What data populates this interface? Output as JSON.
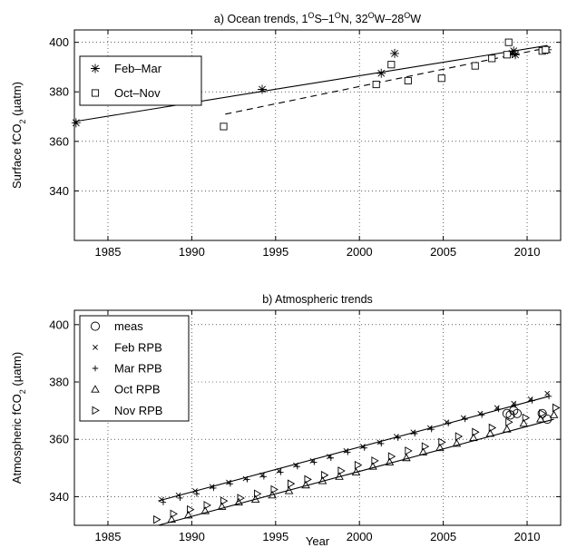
{
  "chart_data": [
    {
      "type": "scatter",
      "title": "a) Ocean trends, 1°S–1°N, 32°W–28°W",
      "title_parts": [
        "a) Ocean trends, 1",
        "O",
        "S–1",
        "O",
        "N, 32",
        "O",
        "W–28",
        "O",
        "W"
      ],
      "xlabel": "",
      "ylabel": "Surface fCO2 (µatm)",
      "ylabel_parts": [
        "Surface fCO",
        "2",
        " (µatm)"
      ],
      "xlim": [
        1983,
        2012
      ],
      "ylim": [
        320,
        405
      ],
      "xticks": [
        1985,
        1990,
        1995,
        2000,
        2005,
        2010
      ],
      "yticks": [
        340,
        360,
        380,
        400
      ],
      "grid": true,
      "legend_position": "top-left",
      "series": [
        {
          "name": "Feb–Mar",
          "marker": "asterisk",
          "points": [
            [
              1983.1,
              367.5
            ],
            [
              1994.2,
              381
            ],
            [
              2001.3,
              387.5
            ],
            [
              2002.1,
              395.5
            ],
            [
              2009.1,
              395.5
            ],
            [
              2009.2,
              396.5
            ],
            [
              2009.3,
              395
            ],
            [
              2011.2,
              397
            ]
          ]
        },
        {
          "name": "Oct–Nov",
          "marker": "square",
          "points": [
            [
              1991.9,
              366
            ],
            [
              2001,
              383
            ],
            [
              2001.9,
              391
            ],
            [
              2002.9,
              384.5
            ],
            [
              2004.9,
              385.5
            ],
            [
              2006.9,
              390.5
            ],
            [
              2007.9,
              393.5
            ],
            [
              2008.8,
              395
            ],
            [
              2008.9,
              400
            ],
            [
              2010.9,
              396.5
            ],
            [
              2011.1,
              397
            ]
          ]
        }
      ],
      "trend_lines": [
        {
          "series": "Feb–Mar",
          "style": "solid",
          "x": [
            1983,
            2011.2
          ],
          "y": [
            368,
            398.7
          ]
        },
        {
          "series": "Oct–Nov",
          "style": "dashed",
          "x": [
            1992,
            2011
          ],
          "y": [
            371,
            397.5
          ]
        }
      ]
    },
    {
      "type": "scatter",
      "title": "b) Atmospheric trends",
      "xlabel": "Year",
      "ylabel": "Atmospheric fCO2 (µatm)",
      "ylabel_parts": [
        "Atmospheric fCO",
        "2",
        " (µatm)"
      ],
      "xlim": [
        1983,
        2012
      ],
      "ylim": [
        330,
        405
      ],
      "xticks": [
        1985,
        1990,
        1995,
        2000,
        2005,
        2010
      ],
      "yticks": [
        340,
        360,
        380,
        400
      ],
      "grid": true,
      "legend_position": "top-left",
      "series": [
        {
          "name": "meas",
          "marker": "circle",
          "points": [
            [
              2008.8,
              369
            ],
            [
              2009,
              368.5
            ],
            [
              2009.2,
              370
            ],
            [
              2009.4,
              369
            ],
            [
              2010.9,
              369
            ],
            [
              2011.2,
              367
            ]
          ]
        },
        {
          "name": "Feb RPB",
          "marker": "x",
          "points": [
            [
              1988.2,
              339
            ],
            [
              1989.2,
              340.5
            ],
            [
              1990.2,
              342
            ],
            [
              1991.2,
              343.5
            ],
            [
              1992.2,
              345
            ],
            [
              1993.2,
              346.3
            ],
            [
              1994.2,
              347.5
            ],
            [
              1995.2,
              349
            ],
            [
              1996.2,
              351
            ],
            [
              1997.2,
              352.5
            ],
            [
              1998.2,
              354
            ],
            [
              1999.2,
              356
            ],
            [
              2000.2,
              357.5
            ],
            [
              2001.2,
              359
            ],
            [
              2002.2,
              361
            ],
            [
              2003.2,
              362.5
            ],
            [
              2004.2,
              364
            ],
            [
              2005.2,
              366
            ],
            [
              2006.2,
              367.5
            ],
            [
              2007.2,
              369
            ],
            [
              2008.2,
              371
            ],
            [
              2009.2,
              372.5
            ],
            [
              2010.2,
              374
            ],
            [
              2011.2,
              376
            ]
          ]
        },
        {
          "name": "Mar RPB",
          "marker": "plus",
          "points": [
            [
              1988.3,
              338
            ],
            [
              1989.3,
              339.5
            ],
            [
              1990.3,
              341
            ],
            [
              1991.3,
              343
            ],
            [
              1992.3,
              344.5
            ],
            [
              1993.3,
              346
            ],
            [
              1994.3,
              347
            ],
            [
              1995.3,
              348.5
            ],
            [
              1996.3,
              350.5
            ],
            [
              1997.3,
              352
            ],
            [
              1998.3,
              353.5
            ],
            [
              1999.3,
              355.5
            ],
            [
              2000.3,
              357
            ],
            [
              2001.3,
              358.5
            ],
            [
              2002.3,
              360.5
            ],
            [
              2003.3,
              362
            ],
            [
              2004.3,
              363.5
            ],
            [
              2005.3,
              365.5
            ],
            [
              2006.3,
              367
            ],
            [
              2007.3,
              368.5
            ],
            [
              2008.3,
              370.5
            ],
            [
              2009.3,
              372
            ],
            [
              2010.3,
              373.5
            ],
            [
              2011.3,
              375
            ]
          ]
        },
        {
          "name": "Oct RPB",
          "marker": "triangle-up",
          "points": [
            [
              1988.8,
              332
            ],
            [
              1989.8,
              333.5
            ],
            [
              1990.8,
              335
            ],
            [
              1991.8,
              336.5
            ],
            [
              1992.8,
              338
            ],
            [
              1993.8,
              339
            ],
            [
              1994.8,
              340.5
            ],
            [
              1995.8,
              342
            ],
            [
              1996.8,
              344
            ],
            [
              1997.8,
              345.5
            ],
            [
              1998.8,
              347
            ],
            [
              1999.8,
              348.5
            ],
            [
              2000.8,
              350.5
            ],
            [
              2001.8,
              352
            ],
            [
              2002.8,
              353.5
            ],
            [
              2003.8,
              355.5
            ],
            [
              2004.8,
              357
            ],
            [
              2005.8,
              358.5
            ],
            [
              2006.8,
              360.5
            ],
            [
              2007.8,
              362
            ],
            [
              2008.8,
              363.5
            ],
            [
              2009.8,
              365.5
            ],
            [
              2010.8,
              367
            ],
            [
              2011.6,
              368.5
            ]
          ]
        },
        {
          "name": "Nov RPB",
          "marker": "triangle-right",
          "points": [
            [
              1987.9,
              332
            ],
            [
              1988.9,
              334
            ],
            [
              1989.9,
              335.5
            ],
            [
              1990.9,
              337
            ],
            [
              1991.9,
              338.5
            ],
            [
              1992.9,
              339.5
            ],
            [
              1993.9,
              341
            ],
            [
              1994.9,
              342.5
            ],
            [
              1995.9,
              344.5
            ],
            [
              1996.9,
              346
            ],
            [
              1997.9,
              347.5
            ],
            [
              1998.9,
              349
            ],
            [
              1999.9,
              351
            ],
            [
              2000.9,
              352.5
            ],
            [
              2001.9,
              354
            ],
            [
              2002.9,
              356
            ],
            [
              2003.9,
              357.5
            ],
            [
              2004.9,
              359
            ],
            [
              2005.9,
              361
            ],
            [
              2006.9,
              362.5
            ],
            [
              2007.9,
              364
            ],
            [
              2008.9,
              366
            ],
            [
              2009.9,
              367.5
            ],
            [
              2010.9,
              369
            ],
            [
              2011.7,
              371
            ]
          ]
        }
      ],
      "trend_lines": [
        {
          "series": "Feb/Mar RPB",
          "style": "solid",
          "x": [
            1988,
            2011.3
          ],
          "y": [
            338.5,
            375
          ]
        },
        {
          "series": "Oct/Nov RPB",
          "style": "solid",
          "x": [
            1988,
            2011.6
          ],
          "y": [
            330,
            367
          ]
        }
      ]
    }
  ]
}
